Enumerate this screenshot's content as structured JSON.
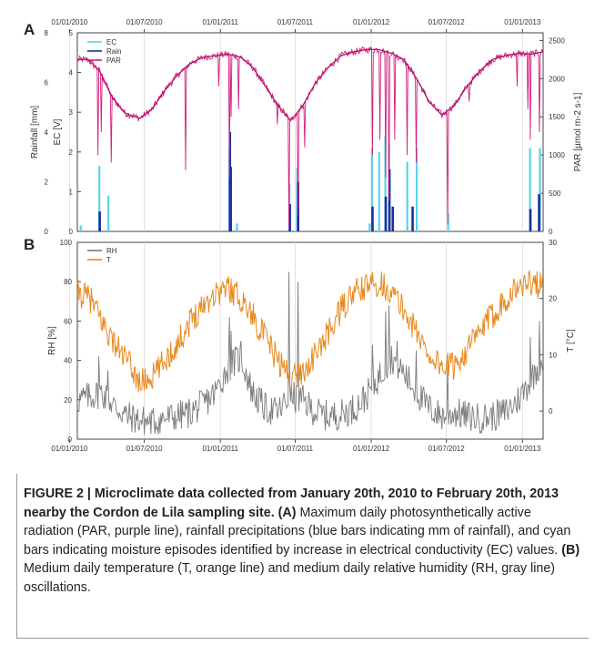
{
  "figure": {
    "caption": {
      "title": "FIGURE 2 | Microclimate data collected from January 20th, 2010 to February 20th, 2013 nearby the Cordon de Lila sampling site.",
      "label_a": "(A)",
      "text_a": "Maximum daily photosynthetically active radiation (PAR, purple line), rainfall precipitations (blue bars indicating mm of rainfall), and cyan bars indicating moisture episodes identified by increase in electrical conductivity (EC) values.",
      "label_b": "(B)",
      "text_b": "Medium daily temperature (T, orange line) and medium daily relative humidity (RH, gray line) oscillations."
    }
  },
  "chart_data": [
    {
      "panel": "A",
      "type": "bar+line",
      "x_ticks": [
        "01/01/2010",
        "01/07/2010",
        "01/01/2011",
        "01/07/2011",
        "01/01/2012",
        "01/07/2012",
        "01/01/2013"
      ],
      "x_range": [
        "2010-01-20",
        "2013-02-20"
      ],
      "ylabel_outer": "Rainfall [mm]",
      "ylabel_inner": "EC [V]",
      "ylabel_right": "PAR [µmol m-2 s-1]",
      "ylim_rain": [
        0,
        8
      ],
      "ylim_ec": [
        0,
        5
      ],
      "ylim_par": [
        0,
        2600
      ],
      "rain_ticks": [
        "0",
        "2",
        "4",
        "6",
        "8"
      ],
      "ec_ticks": [
        "0",
        "1",
        "2",
        "3",
        "4",
        "5"
      ],
      "par_ticks": [
        "0",
        "500",
        "1000",
        "1500",
        "2000",
        "2500"
      ],
      "legend": [
        "EC",
        "Rain",
        "PAR"
      ],
      "colors": {
        "EC": "#5ad4e6",
        "Rain": "#1a2f9e",
        "PAR": "#d21f7c"
      },
      "rain_events": [
        {
          "date": "2010-03-15",
          "mm": 0.8
        },
        {
          "date": "2011-01-24",
          "mm": 4.0
        },
        {
          "date": "2011-01-26",
          "mm": 2.6
        },
        {
          "date": "2011-06-18",
          "mm": 1.1
        },
        {
          "date": "2011-07-08",
          "mm": 2.0
        },
        {
          "date": "2012-01-04",
          "mm": 1.0
        },
        {
          "date": "2012-02-05",
          "mm": 1.4
        },
        {
          "date": "2012-02-14",
          "mm": 2.5
        },
        {
          "date": "2012-02-22",
          "mm": 1.0
        },
        {
          "date": "2012-04-10",
          "mm": 1.0
        },
        {
          "date": "2013-01-20",
          "mm": 0.9
        },
        {
          "date": "2013-02-10",
          "mm": 1.5
        }
      ],
      "ec_events": [
        {
          "date": "2010-01-28",
          "v": 0.15
        },
        {
          "date": "2010-03-14",
          "v": 1.65
        },
        {
          "date": "2010-04-05",
          "v": 0.9
        },
        {
          "date": "2011-01-23",
          "v": 2.1
        },
        {
          "date": "2011-02-10",
          "v": 0.2
        },
        {
          "date": "2011-06-17",
          "v": 1.2
        },
        {
          "date": "2011-07-06",
          "v": 1.6
        },
        {
          "date": "2011-12-28",
          "v": 0.2
        },
        {
          "date": "2012-01-03",
          "v": 2.1
        },
        {
          "date": "2012-01-20",
          "v": 2.0
        },
        {
          "date": "2012-02-04",
          "v": 2.4
        },
        {
          "date": "2012-02-13",
          "v": 2.2
        },
        {
          "date": "2012-03-28",
          "v": 1.75
        },
        {
          "date": "2012-04-20",
          "v": 2.1
        },
        {
          "date": "2012-07-05",
          "v": 0.45
        },
        {
          "date": "2013-01-19",
          "v": 2.1
        },
        {
          "date": "2013-02-12",
          "v": 2.1
        }
      ],
      "par_anchor_points": [
        {
          "date": "2010-01-20",
          "v": 2250
        },
        {
          "date": "2010-02-15",
          "v": 2250
        },
        {
          "date": "2010-03-15",
          "v": 2100
        },
        {
          "date": "2010-04-15",
          "v": 1750
        },
        {
          "date": "2010-05-15",
          "v": 1550
        },
        {
          "date": "2010-06-20",
          "v": 1480
        },
        {
          "date": "2010-07-20",
          "v": 1600
        },
        {
          "date": "2010-08-20",
          "v": 1850
        },
        {
          "date": "2010-09-20",
          "v": 2050
        },
        {
          "date": "2010-10-20",
          "v": 2200
        },
        {
          "date": "2010-11-20",
          "v": 2280
        },
        {
          "date": "2010-12-20",
          "v": 2300
        },
        {
          "date": "2011-01-20",
          "v": 2320
        },
        {
          "date": "2011-02-20",
          "v": 2280
        },
        {
          "date": "2011-03-20",
          "v": 2150
        },
        {
          "date": "2011-04-20",
          "v": 1900
        },
        {
          "date": "2011-05-20",
          "v": 1650
        },
        {
          "date": "2011-06-20",
          "v": 1450
        },
        {
          "date": "2011-07-20",
          "v": 1650
        },
        {
          "date": "2011-08-20",
          "v": 1950
        },
        {
          "date": "2011-09-20",
          "v": 2150
        },
        {
          "date": "2011-10-20",
          "v": 2300
        },
        {
          "date": "2011-11-20",
          "v": 2350
        },
        {
          "date": "2011-12-20",
          "v": 2380
        },
        {
          "date": "2012-01-20",
          "v": 2380
        },
        {
          "date": "2012-02-20",
          "v": 2330
        },
        {
          "date": "2012-03-20",
          "v": 2250
        },
        {
          "date": "2012-04-20",
          "v": 2000
        },
        {
          "date": "2012-05-20",
          "v": 1700
        },
        {
          "date": "2012-06-20",
          "v": 1520
        },
        {
          "date": "2012-07-20",
          "v": 1650
        },
        {
          "date": "2012-08-20",
          "v": 1900
        },
        {
          "date": "2012-09-20",
          "v": 2100
        },
        {
          "date": "2012-10-20",
          "v": 2250
        },
        {
          "date": "2012-11-20",
          "v": 2300
        },
        {
          "date": "2012-12-20",
          "v": 2330
        },
        {
          "date": "2013-01-20",
          "v": 2320
        },
        {
          "date": "2013-02-20",
          "v": 2350
        }
      ],
      "par_dips": [
        {
          "date": "2010-03-12",
          "v": 1000
        },
        {
          "date": "2010-03-20",
          "v": 1300
        },
        {
          "date": "2010-04-12",
          "v": 900
        },
        {
          "date": "2010-10-10",
          "v": 800
        },
        {
          "date": "2010-12-28",
          "v": 1900
        },
        {
          "date": "2011-01-23",
          "v": 700
        },
        {
          "date": "2011-01-27",
          "v": 1500
        },
        {
          "date": "2011-02-14",
          "v": 1600
        },
        {
          "date": "2011-05-20",
          "v": 1400
        },
        {
          "date": "2011-06-17",
          "v": 50
        },
        {
          "date": "2011-07-08",
          "v": 200
        },
        {
          "date": "2011-07-25",
          "v": 1100
        },
        {
          "date": "2012-01-04",
          "v": 1000
        },
        {
          "date": "2012-01-22",
          "v": 1200
        },
        {
          "date": "2012-02-06",
          "v": 700
        },
        {
          "date": "2012-02-14",
          "v": 400
        },
        {
          "date": "2012-02-28",
          "v": 1200
        },
        {
          "date": "2012-03-28",
          "v": 1000
        },
        {
          "date": "2012-04-20",
          "v": 900
        },
        {
          "date": "2012-07-05",
          "v": 100
        },
        {
          "date": "2012-08-25",
          "v": 1700
        },
        {
          "date": "2012-12-20",
          "v": 1900
        },
        {
          "date": "2013-01-15",
          "v": 1600
        },
        {
          "date": "2013-01-21",
          "v": 1200
        },
        {
          "date": "2013-02-12",
          "v": 1300
        }
      ]
    },
    {
      "panel": "B",
      "type": "line",
      "x_ticks": [
        "01/01/2010",
        "01/07/2010",
        "01/01/2011",
        "01/07/2011",
        "01/01/2012",
        "01/07/2012",
        "01/01/2013"
      ],
      "x_range": [
        "2010-01-20",
        "2013-02-20"
      ],
      "ylabel_left": "RH [%]",
      "ylabel_right": "T [°C]",
      "ylim_rh": [
        0,
        100
      ],
      "ylim_t": [
        -5,
        30
      ],
      "rh_ticks": [
        "0",
        "20",
        "40",
        "60",
        "80",
        "100"
      ],
      "t_ticks": [
        "0",
        "10",
        "20",
        "30"
      ],
      "legend": [
        "RH",
        "T"
      ],
      "colors": {
        "RH": "#7a7a7a",
        "T": "#e8891e"
      },
      "t_anchor_points": [
        {
          "date": "2010-01-20",
          "v": 21
        },
        {
          "date": "2010-02-20",
          "v": 20
        },
        {
          "date": "2010-03-20",
          "v": 16
        },
        {
          "date": "2010-04-20",
          "v": 12
        },
        {
          "date": "2010-05-20",
          "v": 9
        },
        {
          "date": "2010-06-20",
          "v": 5
        },
        {
          "date": "2010-07-20",
          "v": 6
        },
        {
          "date": "2010-08-20",
          "v": 9
        },
        {
          "date": "2010-09-20",
          "v": 12
        },
        {
          "date": "2010-10-20",
          "v": 16
        },
        {
          "date": "2010-11-20",
          "v": 19
        },
        {
          "date": "2010-12-20",
          "v": 21
        },
        {
          "date": "2011-01-20",
          "v": 22
        },
        {
          "date": "2011-02-20",
          "v": 20
        },
        {
          "date": "2011-03-20",
          "v": 17
        },
        {
          "date": "2011-04-20",
          "v": 13
        },
        {
          "date": "2011-05-20",
          "v": 9
        },
        {
          "date": "2011-06-20",
          "v": 6
        },
        {
          "date": "2011-07-20",
          "v": 7
        },
        {
          "date": "2011-08-20",
          "v": 10
        },
        {
          "date": "2011-09-20",
          "v": 14
        },
        {
          "date": "2011-10-20",
          "v": 18
        },
        {
          "date": "2011-11-20",
          "v": 21
        },
        {
          "date": "2011-12-20",
          "v": 22
        },
        {
          "date": "2012-01-20",
          "v": 23
        },
        {
          "date": "2012-02-20",
          "v": 21
        },
        {
          "date": "2012-03-20",
          "v": 18
        },
        {
          "date": "2012-04-20",
          "v": 14
        },
        {
          "date": "2012-05-20",
          "v": 10
        },
        {
          "date": "2012-06-20",
          "v": 8
        },
        {
          "date": "2012-07-20",
          "v": 8
        },
        {
          "date": "2012-08-20",
          "v": 11
        },
        {
          "date": "2012-09-20",
          "v": 14
        },
        {
          "date": "2012-10-20",
          "v": 17
        },
        {
          "date": "2012-11-20",
          "v": 20
        },
        {
          "date": "2012-12-20",
          "v": 22
        },
        {
          "date": "2013-01-20",
          "v": 23
        },
        {
          "date": "2013-02-20",
          "v": 22
        }
      ],
      "rh_anchor_points": [
        {
          "date": "2010-01-20",
          "v": 18
        },
        {
          "date": "2010-02-20",
          "v": 20
        },
        {
          "date": "2010-03-20",
          "v": 22
        },
        {
          "date": "2010-04-20",
          "v": 15
        },
        {
          "date": "2010-05-20",
          "v": 10
        },
        {
          "date": "2010-06-20",
          "v": 8
        },
        {
          "date": "2010-07-20",
          "v": 7
        },
        {
          "date": "2010-08-20",
          "v": 9
        },
        {
          "date": "2010-09-20",
          "v": 10
        },
        {
          "date": "2010-10-20",
          "v": 12
        },
        {
          "date": "2010-11-20",
          "v": 16
        },
        {
          "date": "2010-12-20",
          "v": 22
        },
        {
          "date": "2011-01-20",
          "v": 35
        },
        {
          "date": "2011-02-20",
          "v": 40
        },
        {
          "date": "2011-03-20",
          "v": 22
        },
        {
          "date": "2011-04-20",
          "v": 14
        },
        {
          "date": "2011-05-20",
          "v": 12
        },
        {
          "date": "2011-06-20",
          "v": 20
        },
        {
          "date": "2011-07-20",
          "v": 18
        },
        {
          "date": "2011-08-20",
          "v": 12
        },
        {
          "date": "2011-09-20",
          "v": 10
        },
        {
          "date": "2011-10-20",
          "v": 11
        },
        {
          "date": "2011-11-20",
          "v": 14
        },
        {
          "date": "2011-12-20",
          "v": 20
        },
        {
          "date": "2012-01-20",
          "v": 30
        },
        {
          "date": "2012-02-20",
          "v": 40
        },
        {
          "date": "2012-03-20",
          "v": 32
        },
        {
          "date": "2012-04-20",
          "v": 22
        },
        {
          "date": "2012-05-20",
          "v": 14
        },
        {
          "date": "2012-06-20",
          "v": 10
        },
        {
          "date": "2012-07-20",
          "v": 12
        },
        {
          "date": "2012-08-20",
          "v": 10
        },
        {
          "date": "2012-09-20",
          "v": 9
        },
        {
          "date": "2012-10-20",
          "v": 10
        },
        {
          "date": "2012-11-20",
          "v": 12
        },
        {
          "date": "2012-12-20",
          "v": 18
        },
        {
          "date": "2013-01-20",
          "v": 28
        },
        {
          "date": "2013-02-20",
          "v": 40
        }
      ],
      "rh_peaks": [
        {
          "date": "2010-03-14",
          "v": 42
        },
        {
          "date": "2010-04-05",
          "v": 35
        },
        {
          "date": "2011-01-23",
          "v": 62
        },
        {
          "date": "2011-01-28",
          "v": 55
        },
        {
          "date": "2011-02-20",
          "v": 50
        },
        {
          "date": "2011-06-17",
          "v": 85
        },
        {
          "date": "2011-07-08",
          "v": 80
        },
        {
          "date": "2012-01-04",
          "v": 48
        },
        {
          "date": "2012-02-06",
          "v": 65
        },
        {
          "date": "2012-02-14",
          "v": 68
        },
        {
          "date": "2012-03-05",
          "v": 50
        },
        {
          "date": "2012-04-20",
          "v": 45
        },
        {
          "date": "2012-07-05",
          "v": 40
        },
        {
          "date": "2013-01-20",
          "v": 52
        },
        {
          "date": "2013-02-12",
          "v": 60
        }
      ]
    }
  ],
  "panel_labels": {
    "a": "A",
    "b": "B"
  }
}
